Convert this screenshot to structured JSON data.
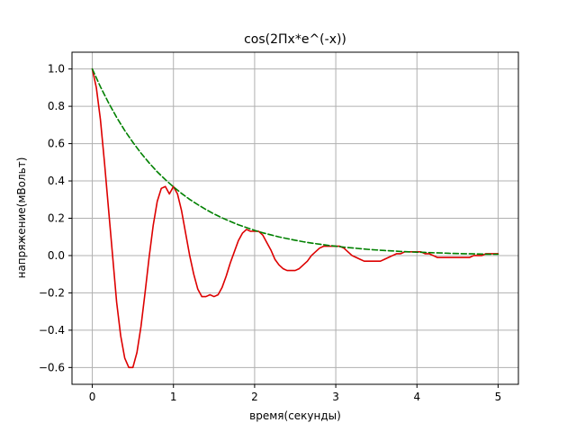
{
  "chart_data": {
    "type": "line",
    "title": "cos(2Пx*e^(-x))",
    "xlabel": "время(секунды)",
    "ylabel": "напряжение(мВольт)",
    "xlim": [
      -0.25,
      5.25
    ],
    "ylim": [
      -0.69,
      1.09
    ],
    "grid": true,
    "xticks": [
      0,
      1,
      2,
      3,
      4,
      5
    ],
    "xtick_labels": [
      "0",
      "1",
      "2",
      "3",
      "4",
      "5"
    ],
    "yticks": [
      -0.6,
      -0.4,
      -0.2,
      0.0,
      0.2,
      0.4,
      0.6,
      0.8,
      1.0
    ],
    "ytick_labels": [
      "−0.6",
      "−0.4",
      "−0.2",
      "0.0",
      "0.2",
      "0.4",
      "0.6",
      "0.8",
      "1.0"
    ],
    "series": [
      {
        "color": "#dd0000",
        "style": "solid",
        "x": [
          0.0,
          0.05,
          0.1,
          0.15,
          0.2,
          0.25,
          0.3,
          0.35,
          0.4,
          0.45,
          0.5,
          0.55,
          0.6,
          0.65,
          0.7,
          0.75,
          0.8,
          0.85,
          0.9,
          0.95,
          1.0,
          1.05,
          1.1,
          1.15,
          1.2,
          1.25,
          1.3,
          1.35,
          1.4,
          1.45,
          1.5,
          1.55,
          1.6,
          1.65,
          1.7,
          1.75,
          1.8,
          1.85,
          1.9,
          1.95,
          2.0,
          2.05,
          2.1,
          2.15,
          2.2,
          2.25,
          2.3,
          2.35,
          2.4,
          2.45,
          2.5,
          2.55,
          2.6,
          2.65,
          2.7,
          2.75,
          2.8,
          2.85,
          2.9,
          2.95,
          3.0,
          3.05,
          3.1,
          3.15,
          3.2,
          3.25,
          3.3,
          3.35,
          3.4,
          3.45,
          3.5,
          3.55,
          3.6,
          3.65,
          3.7,
          3.75,
          3.8,
          3.85,
          3.9,
          3.95,
          4.0,
          4.05,
          4.1,
          4.15,
          4.2,
          4.25,
          4.3,
          4.35,
          4.4,
          4.45,
          4.5,
          4.55,
          4.6,
          4.65,
          4.7,
          4.75,
          4.8,
          4.85,
          4.9,
          4.95,
          5.0
        ],
        "y": [
          1.0,
          0.9,
          0.73,
          0.5,
          0.25,
          0.0,
          -0.25,
          -0.43,
          -0.55,
          -0.6,
          -0.6,
          -0.52,
          -0.38,
          -0.2,
          -0.01,
          0.16,
          0.29,
          0.36,
          0.37,
          0.33,
          0.37,
          0.33,
          0.24,
          0.12,
          0.0,
          -0.1,
          -0.18,
          -0.22,
          -0.22,
          -0.21,
          -0.22,
          -0.21,
          -0.17,
          -0.11,
          -0.04,
          0.02,
          0.08,
          0.12,
          0.14,
          0.13,
          0.13,
          0.13,
          0.11,
          0.07,
          0.03,
          -0.02,
          -0.05,
          -0.07,
          -0.08,
          -0.08,
          -0.08,
          -0.07,
          -0.05,
          -0.03,
          0.0,
          0.02,
          0.04,
          0.05,
          0.05,
          0.05,
          0.05,
          0.05,
          0.04,
          0.02,
          0.0,
          -0.01,
          -0.02,
          -0.03,
          -0.03,
          -0.03,
          -0.03,
          -0.03,
          -0.02,
          -0.01,
          0.0,
          0.01,
          0.01,
          0.02,
          0.02,
          0.02,
          0.02,
          0.02,
          0.01,
          0.01,
          0.0,
          -0.01,
          -0.01,
          -0.01,
          -0.01,
          -0.01,
          -0.01,
          -0.01,
          -0.01,
          -0.01,
          0.0,
          0.0,
          0.0,
          0.01,
          0.01,
          0.01,
          0.01
        ]
      },
      {
        "color": "#008000",
        "style": "dashed",
        "x": [
          0.0,
          0.1,
          0.2,
          0.3,
          0.4,
          0.5,
          0.6,
          0.7,
          0.8,
          0.9,
          1.0,
          1.1,
          1.2,
          1.3,
          1.4,
          1.5,
          1.6,
          1.7,
          1.8,
          1.9,
          2.0,
          2.1,
          2.2,
          2.3,
          2.4,
          2.5,
          2.6,
          2.7,
          2.8,
          2.9,
          3.0,
          3.1,
          3.2,
          3.3,
          3.4,
          3.5,
          3.6,
          3.7,
          3.8,
          3.9,
          4.0,
          4.1,
          4.2,
          4.3,
          4.4,
          4.5,
          4.6,
          4.7,
          4.8,
          4.9,
          5.0
        ],
        "y": [
          1.0,
          0.905,
          0.819,
          0.741,
          0.67,
          0.607,
          0.549,
          0.497,
          0.449,
          0.407,
          0.368,
          0.333,
          0.301,
          0.273,
          0.247,
          0.223,
          0.202,
          0.183,
          0.165,
          0.15,
          0.135,
          0.122,
          0.111,
          0.1,
          0.091,
          0.082,
          0.074,
          0.067,
          0.061,
          0.055,
          0.05,
          0.045,
          0.041,
          0.037,
          0.033,
          0.03,
          0.027,
          0.025,
          0.022,
          0.02,
          0.018,
          0.017,
          0.015,
          0.014,
          0.012,
          0.011,
          0.01,
          0.009,
          0.008,
          0.007,
          0.007
        ]
      }
    ]
  }
}
